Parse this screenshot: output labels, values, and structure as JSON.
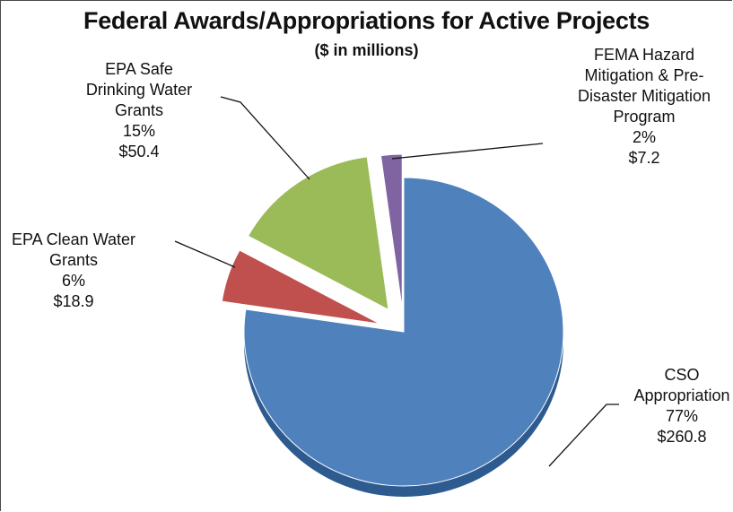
{
  "chart_data": {
    "type": "pie",
    "title": "Federal Awards/Appropriations for Active Projects",
    "subtitle": "($ in millions)",
    "slices": [
      {
        "key": "cso",
        "name_lines": [
          "CSO",
          "Appropriation"
        ],
        "percent_label": "77%",
        "value_label": "$260.8",
        "value": 260.8,
        "color": "#4f81bd",
        "shadow": "#2d5a8f"
      },
      {
        "key": "clean",
        "name_lines": [
          "EPA Clean Water",
          "Grants"
        ],
        "percent_label": "6%",
        "value_label": "$18.9",
        "value": 18.9,
        "color": "#c0504d",
        "shadow": "#7d2e2c"
      },
      {
        "key": "safe",
        "name_lines": [
          "EPA Safe",
          "Drinking Water",
          "Grants"
        ],
        "percent_label": "15%",
        "value_label": "$50.4",
        "value": 50.4,
        "color": "#9bbb59",
        "shadow": "#5d7a2a"
      },
      {
        "key": "fema",
        "name_lines": [
          "FEMA Hazard",
          "Mitigation & Pre-",
          "Disaster Mitigation",
          "Program"
        ],
        "percent_label": "2%",
        "value_label": "$7.2",
        "value": 7.2,
        "color": "#8064a2",
        "shadow": "#4d3670"
      }
    ]
  }
}
